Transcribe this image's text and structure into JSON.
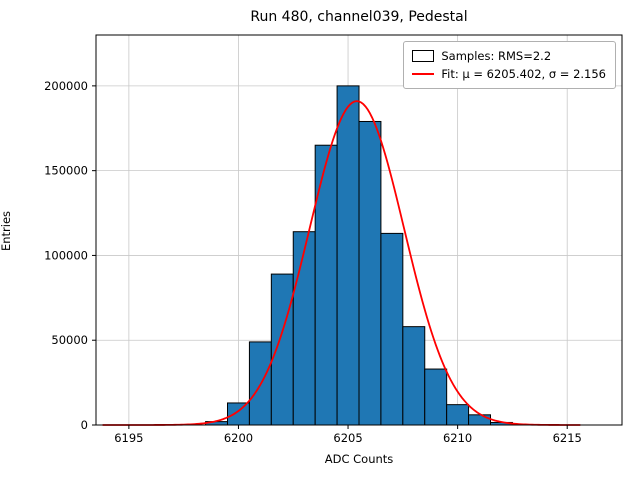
{
  "chart_data": {
    "type": "bar",
    "subtype": "histogram-with-gaussian-fit",
    "title": "Run 480, channel039, Pedestal",
    "xlabel": "ADC Counts",
    "ylabel": "Entries",
    "xlim": [
      6193.5,
      6217.5
    ],
    "ylim": [
      0,
      230000
    ],
    "xticks": [
      6195,
      6200,
      6205,
      6210,
      6215
    ],
    "yticks": [
      0,
      50000,
      100000,
      150000,
      200000
    ],
    "grid": true,
    "bar_color": "#1f77b4",
    "bar_edge_color": "#000000",
    "fit_color": "#ff0000",
    "bin_width": 1,
    "bin_centers": [
      6199,
      6200,
      6201,
      6202,
      6203,
      6204,
      6205,
      6206,
      6207,
      6208,
      6209,
      6210,
      6211,
      6212
    ],
    "counts": [
      2000,
      13000,
      49000,
      89000,
      114000,
      165000,
      200000,
      179000,
      113000,
      58000,
      33000,
      12000,
      6000,
      1500
    ],
    "fit": {
      "mu": 6205.402,
      "sigma": 2.156,
      "amplitude": 191000
    },
    "legend": [
      {
        "type": "patch",
        "color": "#1f77b4",
        "label": "Samples: RMS=2.2"
      },
      {
        "type": "line",
        "color": "#ff0000",
        "label": "Fit: μ = 6205.402, σ = 2.156"
      }
    ]
  }
}
